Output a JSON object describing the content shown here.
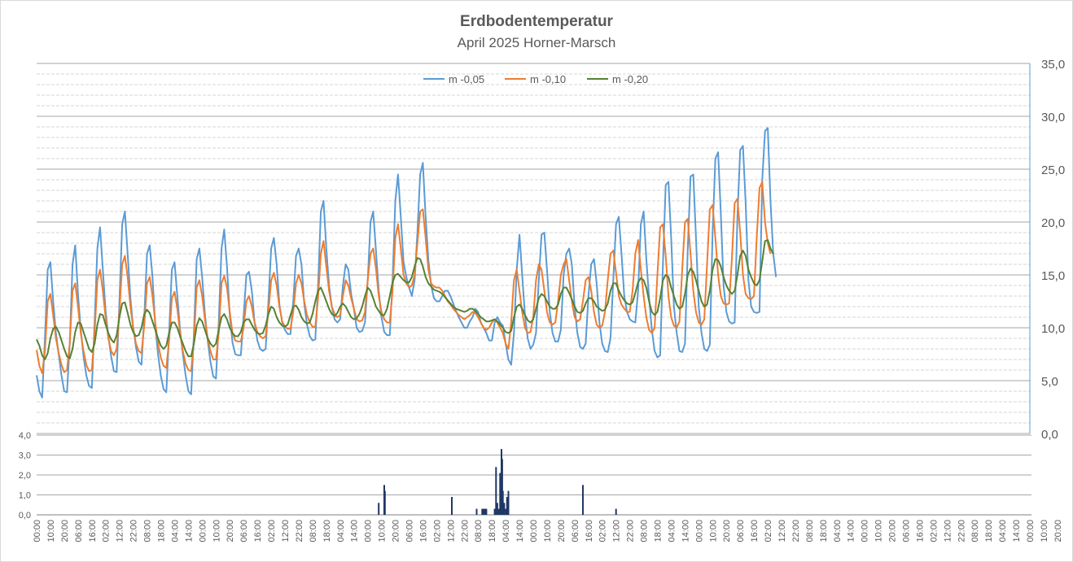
{
  "title": "Erdbodentemperatur",
  "subtitle": "April 2025 Horner-Marsch",
  "chart_data": [
    {
      "type": "line",
      "ylim": [
        0,
        35
      ],
      "y_ticks": [
        "0,0",
        "5,0",
        "10,0",
        "15,0",
        "20,0",
        "25,0",
        "30,0",
        "35,0"
      ],
      "y_axis_side": "right",
      "grid": true,
      "legend_placement": "top",
      "x_start": "2025-04-01 00:00",
      "x_end": "2025-05-01 00:00",
      "x_step_hours": 2,
      "series": [
        {
          "name": "m -0,05",
          "color": "#5b9bd5",
          "values": [
            5.5,
            4.0,
            3.4,
            9.0,
            15.5,
            16.2,
            12.5,
            9.5,
            7.5,
            5.5,
            4.0,
            3.9,
            8.5,
            16.0,
            17.8,
            13.2,
            9.8,
            7.3,
            5.5,
            4.5,
            4.3,
            10.5,
            17.5,
            19.5,
            15.5,
            11.6,
            9.2,
            7.3,
            5.9,
            5.8,
            12.5,
            19.8,
            21.0,
            17.0,
            12.8,
            10.0,
            8.2,
            6.8,
            6.5,
            11.0,
            17.0,
            17.8,
            14.8,
            10.2,
            7.5,
            5.5,
            4.2,
            3.9,
            9.5,
            15.5,
            16.2,
            13.0,
            9.8,
            7.5,
            5.5,
            4.0,
            3.7,
            9.5,
            16.5,
            17.5,
            14.8,
            11.3,
            8.8,
            6.8,
            5.4,
            5.2,
            10.5,
            17.5,
            19.3,
            15.8,
            11.2,
            8.6,
            7.5,
            7.4,
            7.4,
            11.0,
            15.0,
            15.3,
            13.5,
            10.5,
            8.8,
            8.0,
            7.8,
            8.0,
            12.5,
            17.5,
            18.5,
            16.0,
            12.2,
            10.5,
            9.8,
            9.4,
            9.4,
            12.5,
            16.8,
            17.5,
            16.0,
            12.3,
            10.3,
            9.2,
            8.8,
            8.9,
            14.0,
            21.0,
            22.0,
            17.5,
            14.0,
            12.0,
            10.8,
            10.5,
            10.8,
            14.0,
            16.0,
            15.5,
            13.2,
            11.8,
            10.0,
            9.6,
            9.7,
            10.5,
            14.5,
            20.0,
            21.0,
            17.3,
            13.5,
            11.0,
            9.6,
            9.3,
            9.3,
            14.5,
            22.0,
            24.5,
            20.5,
            16.2,
            14.8,
            13.8,
            13.0,
            14.5,
            19.0,
            24.5,
            25.6,
            20.5,
            16.4,
            14.0,
            12.8,
            12.5,
            12.5,
            13.0,
            13.5,
            13.5,
            13.0,
            12.3,
            11.6,
            11.0,
            10.5,
            10.0,
            10.0,
            10.6,
            11.0,
            11.8,
            11.5,
            10.5,
            10.0,
            9.5,
            8.8,
            8.8,
            10.5,
            11.0,
            10.5,
            10.2,
            8.5,
            7.0,
            6.5,
            9.5,
            15.5,
            18.8,
            15.0,
            11.2,
            9.0,
            8.0,
            8.4,
            9.5,
            14.5,
            18.8,
            19.0,
            15.5,
            11.5,
            9.5,
            8.7,
            8.7,
            9.8,
            15.0,
            17.0,
            17.5,
            16.0,
            12.0,
            9.5,
            8.2,
            8.0,
            8.5,
            13.0,
            16.0,
            16.5,
            14.2,
            10.5,
            8.5,
            7.8,
            7.7,
            9.0,
            14.5,
            19.8,
            20.5,
            17.0,
            13.0,
            11.5,
            10.8,
            10.6,
            10.5,
            13.5,
            19.8,
            21.0,
            16.5,
            12.8,
            9.8,
            7.8,
            7.2,
            7.4,
            16.0,
            23.5,
            23.8,
            18.5,
            12.0,
            9.5,
            7.8,
            7.7,
            8.5,
            17.5,
            24.3,
            24.5,
            18.5,
            12.0,
            9.5,
            8.0,
            7.8,
            8.4,
            19.0,
            26.0,
            26.6,
            20.8,
            14.0,
            11.5,
            10.6,
            10.4,
            10.5,
            20.5,
            26.8,
            27.2,
            21.8,
            14.5,
            12.0,
            11.5,
            11.4,
            11.5,
            24.0,
            28.6,
            28.9,
            22.0,
            17.0,
            14.8
          ]
        },
        {
          "name": "m -0,10",
          "color": "#ed7d31",
          "values": [
            7.9,
            6.4,
            5.7,
            7.8,
            12.5,
            13.2,
            11.2,
            9.0,
            7.6,
            6.5,
            5.8,
            6.0,
            8.5,
            13.5,
            14.2,
            12.0,
            9.5,
            7.8,
            6.5,
            5.9,
            6.0,
            9.5,
            14.5,
            15.5,
            13.5,
            11.0,
            9.0,
            7.8,
            7.4,
            8.0,
            11.5,
            16.0,
            16.8,
            14.8,
            12.0,
            10.0,
            8.5,
            7.8,
            7.6,
            10.2,
            14.2,
            14.8,
            13.0,
            10.5,
            8.5,
            7.2,
            6.4,
            6.2,
            8.8,
            12.8,
            13.4,
            11.8,
            9.5,
            7.8,
            6.6,
            6.0,
            5.9,
            8.8,
            13.8,
            14.5,
            13.0,
            10.8,
            9.0,
            7.8,
            7.0,
            7.0,
            9.5,
            14.2,
            14.9,
            13.8,
            11.5,
            9.5,
            8.8,
            8.7,
            8.7,
            10.0,
            12.5,
            13.0,
            12.0,
            10.5,
            9.6,
            9.2,
            9.0,
            9.2,
            11.5,
            14.5,
            15.2,
            14.0,
            12.0,
            10.6,
            10.1,
            9.9,
            9.9,
            11.5,
            14.2,
            15.0,
            14.2,
            12.5,
            11.2,
            10.5,
            10.1,
            10.1,
            12.8,
            17.0,
            18.2,
            15.8,
            13.5,
            12.0,
            11.3,
            11.0,
            11.2,
            13.0,
            14.5,
            14.0,
            12.8,
            11.8,
            10.8,
            10.6,
            10.7,
            11.5,
            14.5,
            17.0,
            17.5,
            15.6,
            13.0,
            11.5,
            10.8,
            10.5,
            10.5,
            13.5,
            18.5,
            19.8,
            17.5,
            15.0,
            14.2,
            13.8,
            14.0,
            15.0,
            18.0,
            21.0,
            21.2,
            18.5,
            15.5,
            14.2,
            13.9,
            13.8,
            13.8,
            13.5,
            13.0,
            12.5,
            12.2,
            11.8,
            11.5,
            11.2,
            11.0,
            10.8,
            11.0,
            11.2,
            11.5,
            11.4,
            11.0,
            10.5,
            10.0,
            9.8,
            10.0,
            10.5,
            10.8,
            10.5,
            10.0,
            9.5,
            8.5,
            8.0,
            10.5,
            14.5,
            15.5,
            13.5,
            11.5,
            10.0,
            9.5,
            9.6,
            11.0,
            14.5,
            16.0,
            15.5,
            13.5,
            11.5,
            10.5,
            10.3,
            10.5,
            12.5,
            15.0,
            16.0,
            16.5,
            14.5,
            12.5,
            11.0,
            10.6,
            10.8,
            12.5,
            14.5,
            14.8,
            13.5,
            11.5,
            10.3,
            10.0,
            10.2,
            11.5,
            14.5,
            17.0,
            17.3,
            15.2,
            13.0,
            12.2,
            11.8,
            11.5,
            11.5,
            13.5,
            17.0,
            18.3,
            15.5,
            13.0,
            11.0,
            9.8,
            9.5,
            10.0,
            15.0,
            19.5,
            19.8,
            16.8,
            13.0,
            11.0,
            10.2,
            10.0,
            10.6,
            15.5,
            20.0,
            20.3,
            17.0,
            13.5,
            11.5,
            10.5,
            10.3,
            10.8,
            16.0,
            21.2,
            21.6,
            18.5,
            15.0,
            13.0,
            12.3,
            12.2,
            12.3,
            16.5,
            21.8,
            22.2,
            19.0,
            15.0,
            13.2,
            12.8,
            12.7,
            13.0,
            18.5,
            23.2,
            23.8,
            20.0,
            18.0,
            17.0
          ]
        },
        {
          "name": "m -0,20",
          "color": "#548235",
          "values": [
            8.9,
            8.3,
            7.4,
            7.0,
            7.6,
            9.0,
            9.9,
            10.1,
            9.6,
            8.8,
            8.0,
            7.3,
            7.1,
            8.0,
            9.6,
            10.5,
            10.4,
            9.6,
            8.8,
            8.0,
            7.7,
            8.5,
            10.3,
            11.3,
            11.2,
            10.3,
            9.5,
            8.9,
            8.6,
            9.3,
            11.0,
            12.3,
            12.4,
            11.4,
            10.3,
            9.6,
            9.2,
            9.3,
            10.0,
            11.3,
            11.7,
            11.4,
            10.6,
            9.8,
            9.0,
            8.3,
            8.0,
            8.3,
            9.5,
            10.5,
            10.5,
            10.0,
            9.2,
            8.5,
            7.8,
            7.3,
            7.3,
            8.5,
            10.2,
            10.9,
            10.6,
            9.8,
            9.0,
            8.5,
            8.2,
            8.5,
            9.8,
            11.0,
            11.3,
            10.8,
            10.0,
            9.5,
            9.2,
            9.2,
            9.6,
            10.5,
            10.8,
            10.8,
            10.3,
            9.8,
            9.5,
            9.4,
            9.5,
            10.2,
            11.3,
            12.0,
            11.8,
            11.0,
            10.5,
            10.2,
            10.1,
            10.3,
            11.2,
            12.0,
            12.1,
            11.7,
            11.0,
            10.6,
            10.4,
            10.5,
            11.3,
            12.5,
            13.5,
            13.8,
            13.2,
            12.5,
            11.8,
            11.3,
            11.1,
            11.4,
            12.0,
            12.3,
            12.0,
            11.5,
            11.0,
            10.8,
            10.9,
            11.3,
            12.0,
            13.0,
            13.8,
            13.5,
            12.8,
            12.0,
            11.6,
            11.2,
            11.2,
            11.8,
            13.0,
            14.3,
            15.0,
            15.1,
            14.8,
            14.5,
            14.3,
            14.3,
            14.8,
            15.8,
            16.6,
            16.5,
            15.8,
            14.8,
            14.2,
            13.9,
            13.6,
            13.5,
            13.4,
            13.2,
            12.9,
            12.6,
            12.3,
            12.0,
            11.8,
            11.7,
            11.6,
            11.5,
            11.6,
            11.8,
            11.8,
            11.6,
            11.3,
            11.0,
            10.8,
            10.6,
            10.6,
            10.7,
            10.8,
            10.6,
            10.3,
            10.0,
            9.6,
            9.5,
            9.7,
            11.0,
            12.0,
            12.2,
            11.8,
            11.2,
            10.7,
            10.5,
            10.8,
            11.8,
            12.8,
            13.2,
            13.0,
            12.5,
            12.0,
            11.8,
            11.8,
            12.2,
            13.2,
            13.8,
            13.8,
            13.3,
            12.7,
            12.0,
            11.5,
            11.4,
            11.6,
            12.3,
            12.8,
            12.8,
            12.5,
            12.0,
            11.8,
            11.6,
            11.7,
            12.3,
            13.5,
            14.2,
            14.2,
            13.5,
            13.0,
            12.6,
            12.3,
            12.2,
            12.4,
            13.3,
            14.3,
            14.7,
            14.5,
            13.8,
            12.5,
            11.5,
            11.2,
            11.5,
            12.8,
            14.5,
            15.0,
            14.8,
            13.8,
            13.0,
            12.2,
            11.8,
            12.0,
            13.2,
            15.0,
            15.6,
            15.3,
            14.5,
            13.5,
            12.5,
            12.0,
            12.2,
            13.5,
            15.5,
            16.5,
            16.4,
            15.8,
            14.8,
            14.0,
            13.5,
            13.2,
            13.5,
            15.0,
            16.8,
            17.3,
            16.8,
            15.5,
            14.8,
            14.2,
            14.0,
            14.5,
            16.3,
            18.2,
            18.3,
            17.5,
            17.0
          ]
        }
      ]
    },
    {
      "type": "bar",
      "ylim": [
        0,
        4
      ],
      "y_ticks": [
        "0,0",
        "1,0",
        "2,0",
        "3,0",
        "4,0"
      ],
      "y_axis_side": "left",
      "color": "#1f3864",
      "x_ticks": [
        "00:00",
        "10:00",
        "20:00",
        "06:00",
        "16:00",
        "02:00",
        "12:00",
        "22:00",
        "08:00",
        "18:00",
        "04:00",
        "14:00",
        "00:00",
        "10:00",
        "20:00",
        "06:00",
        "16:00",
        "02:00",
        "12:00",
        "22:00",
        "08:00",
        "18:00",
        "04:00",
        "14:00",
        "00:00",
        "10:00",
        "20:00",
        "06:00",
        "16:00",
        "02:00",
        "12:00",
        "22:00",
        "08:00",
        "18:00",
        "04:00",
        "14:00",
        "00:00",
        "10:00",
        "20:00",
        "06:00",
        "16:00",
        "02:00",
        "12:00",
        "22:00",
        "08:00",
        "18:00",
        "04:00",
        "14:00",
        "00:00",
        "10:00",
        "20:00",
        "06:00",
        "16:00",
        "02:00",
        "12:00",
        "22:00",
        "08:00",
        "18:00",
        "04:00",
        "14:00",
        "00:00",
        "10:00",
        "20:00",
        "06:00",
        "16:00",
        "02:00",
        "12:00",
        "22:00",
        "08:00",
        "18:00",
        "04:00",
        "14:00",
        "00:00",
        "10:00",
        "20:00"
      ],
      "x_tick_step_hours": 10,
      "bars": [
        {
          "hour": 248,
          "value": 0.6
        },
        {
          "hour": 252,
          "value": 1.5
        },
        {
          "hour": 252.5,
          "value": 1.2
        },
        {
          "hour": 301,
          "value": 0.9
        },
        {
          "hour": 319,
          "value": 0.3
        },
        {
          "hour": 323,
          "value": 0.3
        },
        {
          "hour": 324,
          "value": 0.3
        },
        {
          "hour": 325,
          "value": 0.3
        },
        {
          "hour": 326,
          "value": 0.3
        },
        {
          "hour": 332,
          "value": 0.3
        },
        {
          "hour": 333,
          "value": 2.4
        },
        {
          "hour": 334,
          "value": 0.6
        },
        {
          "hour": 335,
          "value": 0.3
        },
        {
          "hour": 336,
          "value": 2.1
        },
        {
          "hour": 337,
          "value": 3.3
        },
        {
          "hour": 337.5,
          "value": 2.8
        },
        {
          "hour": 338,
          "value": 1.2
        },
        {
          "hour": 339,
          "value": 0.6
        },
        {
          "hour": 340,
          "value": 0.3
        },
        {
          "hour": 341,
          "value": 0.9
        },
        {
          "hour": 342,
          "value": 1.2
        },
        {
          "hour": 396,
          "value": 1.5
        },
        {
          "hour": 420,
          "value": 0.3
        }
      ]
    }
  ]
}
